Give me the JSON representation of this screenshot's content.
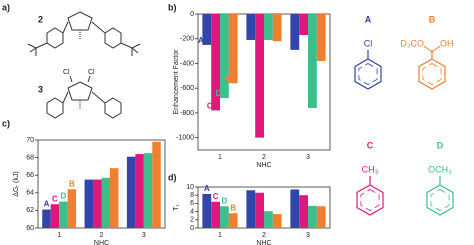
{
  "panel_a": {
    "label": "a)",
    "compounds": [
      "2",
      "3"
    ],
    "substituents": [
      "Cl",
      "Cl"
    ]
  },
  "pyridines": [
    {
      "id": "A",
      "substituent": "Cl",
      "color": "#3344aa"
    },
    {
      "id": "B",
      "substituent": "D₃CO",
      "extra": "OH",
      "color": "#f08030"
    },
    {
      "id": "C",
      "substituent": "CH₃",
      "color": "#e0187c"
    },
    {
      "id": "D",
      "substituent": "OCH₃",
      "color": "#3cbf8a"
    }
  ],
  "chart_data": [
    {
      "type": "bar",
      "label": "b)",
      "y_label": "Enhancement Factor",
      "x_label": "NHC",
      "categories": [
        "1",
        "2",
        "3"
      ],
      "ylim": [
        -1100,
        0
      ],
      "yticks": [
        0,
        -200,
        -400,
        -600,
        -800,
        -1000
      ],
      "series": [
        {
          "name": "A",
          "color": "#3344aa",
          "values": [
            -250,
            -210,
            -290
          ]
        },
        {
          "name": "C",
          "color": "#e0187c",
          "values": [
            -780,
            -1000,
            -170
          ]
        },
        {
          "name": "D",
          "color": "#3cbf8a",
          "values": [
            -680,
            -210,
            -760
          ]
        },
        {
          "name": "B",
          "color": "#f08030",
          "values": [
            -560,
            -220,
            -380
          ]
        }
      ]
    },
    {
      "type": "bar",
      "label": "c)",
      "y_label": "ΔGᵣ (kJ)",
      "x_label": "NHC",
      "categories": [
        "1",
        "2",
        "3"
      ],
      "ylim": [
        60,
        70
      ],
      "yticks": [
        60,
        62,
        64,
        66,
        68,
        70
      ],
      "series": [
        {
          "name": "A",
          "color": "#3344aa",
          "values": [
            62.1,
            65.5,
            68.1
          ]
        },
        {
          "name": "C",
          "color": "#e0187c",
          "values": [
            62.7,
            65.5,
            68.4
          ]
        },
        {
          "name": "D",
          "color": "#3cbf8a",
          "values": [
            63.0,
            65.7,
            68.5
          ]
        },
        {
          "name": "B",
          "color": "#f08030",
          "values": [
            64.4,
            66.8,
            69.8
          ]
        }
      ]
    },
    {
      "type": "bar",
      "label": "d)",
      "y_label": "T₁",
      "x_label": "NHC",
      "categories": [
        "1",
        "2",
        "3"
      ],
      "ylim": [
        0,
        10
      ],
      "yticks": [
        0,
        2,
        4,
        6,
        8,
        10
      ],
      "series": [
        {
          "name": "A",
          "color": "#3344aa",
          "values": [
            8.3,
            9.2,
            9.4
          ]
        },
        {
          "name": "C",
          "color": "#e0187c",
          "values": [
            6.4,
            8.6,
            8.0
          ]
        },
        {
          "name": "D",
          "color": "#3cbf8a",
          "values": [
            5.3,
            4.1,
            5.4
          ]
        },
        {
          "name": "B",
          "color": "#f08030",
          "values": [
            3.6,
            3.4,
            5.3
          ]
        }
      ]
    }
  ]
}
